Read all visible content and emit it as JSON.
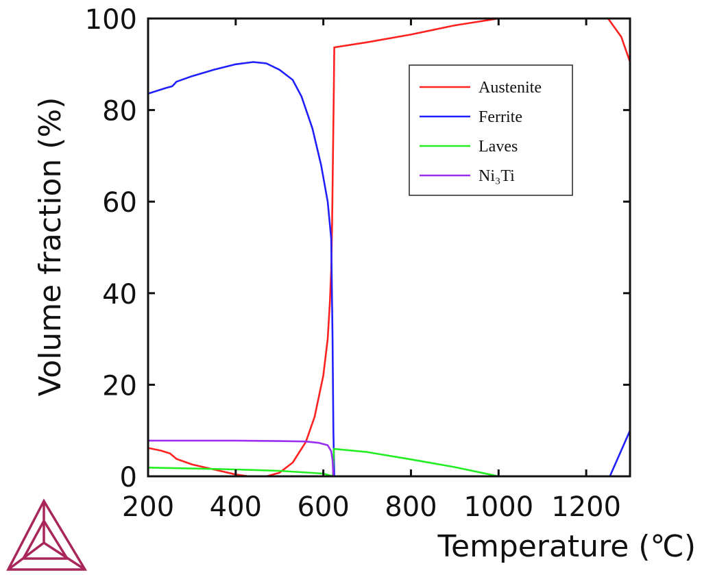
{
  "chart_data": {
    "type": "line",
    "xlabel": "Temperature (℃)",
    "ylabel": "Volume fraction (%)",
    "xlim": [
      200,
      1300
    ],
    "ylim": [
      0,
      100
    ],
    "xticks": [
      "200",
      "400",
      "600",
      "800",
      "1000",
      "1200"
    ],
    "yticks": [
      "0",
      "20",
      "40",
      "60",
      "80",
      "100"
    ],
    "legend_position": "top-right",
    "grid": false,
    "series": [
      {
        "name": "Austenite",
        "color": "#ff2020",
        "points": [
          [
            200,
            6.2
          ],
          [
            230,
            5.6
          ],
          [
            250,
            5.0
          ],
          [
            265,
            3.8
          ],
          [
            300,
            2.6
          ],
          [
            350,
            1.5
          ],
          [
            400,
            0.4
          ],
          [
            430,
            0
          ],
          [
            470,
            0
          ],
          [
            500,
            0.8
          ],
          [
            530,
            3
          ],
          [
            560,
            7.5
          ],
          [
            580,
            13
          ],
          [
            600,
            22
          ],
          [
            610,
            30
          ],
          [
            615,
            38
          ],
          [
            618,
            45
          ],
          [
            620,
            55
          ],
          [
            622,
            70
          ],
          [
            624,
            85
          ],
          [
            625,
            93.7
          ],
          [
            700,
            94.8
          ],
          [
            800,
            96.5
          ],
          [
            900,
            98.5
          ],
          [
            1000,
            100
          ],
          [
            1250,
            100
          ],
          [
            1280,
            96
          ],
          [
            1300,
            90.5
          ]
        ]
      },
      {
        "name": "Ferrite",
        "color": "#2020ff",
        "points": [
          [
            200,
            83.6
          ],
          [
            240,
            84.8
          ],
          [
            255,
            85.2
          ],
          [
            265,
            86.2
          ],
          [
            300,
            87.4
          ],
          [
            350,
            88.8
          ],
          [
            400,
            90
          ],
          [
            440,
            90.5
          ],
          [
            470,
            90.2
          ],
          [
            500,
            88.8
          ],
          [
            530,
            86.6
          ],
          [
            550,
            83
          ],
          [
            575,
            76
          ],
          [
            595,
            68
          ],
          [
            610,
            60
          ],
          [
            618,
            52
          ],
          [
            621,
            30
          ],
          [
            623,
            10
          ],
          [
            625,
            0
          ]
        ]
      },
      {
        "name": "Laves",
        "color": "#22ee22",
        "points": [
          [
            200,
            1.9
          ],
          [
            300,
            1.7
          ],
          [
            400,
            1.5
          ],
          [
            500,
            1.2
          ],
          [
            600,
            0.6
          ],
          [
            615,
            0.2
          ],
          [
            620,
            0
          ],
          [
            622,
            0.5
          ],
          [
            624,
            6
          ],
          [
            700,
            5.3
          ],
          [
            800,
            3.7
          ],
          [
            900,
            2
          ],
          [
            980,
            0.4
          ],
          [
            1000,
            0
          ]
        ]
      },
      {
        "name": "Ni₃Ti",
        "color": "#9a2ef0",
        "points": [
          [
            200,
            7.8
          ],
          [
            300,
            7.8
          ],
          [
            400,
            7.8
          ],
          [
            500,
            7.7
          ],
          [
            560,
            7.6
          ],
          [
            590,
            7.3
          ],
          [
            610,
            6.8
          ],
          [
            618,
            5.5
          ],
          [
            621,
            3.5
          ],
          [
            623,
            0
          ]
        ]
      },
      {
        "name": "",
        "color": "#2020ff",
        "points": [
          [
            1254,
            0
          ],
          [
            1300,
            10
          ]
        ]
      }
    ]
  },
  "logo": {
    "name": "thermo-calc-logo-icon",
    "color": "#a8265a"
  }
}
